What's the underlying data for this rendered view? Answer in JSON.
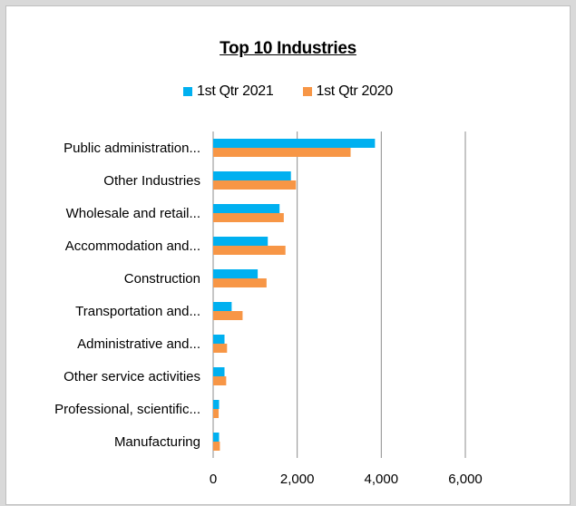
{
  "chart_data": {
    "type": "bar",
    "orientation": "horizontal",
    "title": "Top 10 Industries",
    "categories": [
      "Public administration...",
      "Other Industries",
      "Wholesale and retail...",
      "Accommodation and...",
      "Construction",
      "Transportation and...",
      "Administrative and...",
      "Other service activities",
      "Professional, scientific...",
      "Manufacturing"
    ],
    "series": [
      {
        "name": "1st Qtr 2021",
        "color": "#00b0f0",
        "values": [
          3850,
          1850,
          1580,
          1300,
          1060,
          440,
          270,
          270,
          140,
          140
        ]
      },
      {
        "name": "1st Qtr 2020",
        "color": "#f79646",
        "values": [
          3270,
          1970,
          1680,
          1720,
          1270,
          700,
          330,
          310,
          130,
          160
        ]
      }
    ],
    "xlim": [
      0,
      6000
    ],
    "xticks": [
      0,
      2000,
      4000,
      6000
    ],
    "xtick_labels": [
      "0",
      "2,000",
      "4,000",
      "6,000"
    ],
    "grid": true,
    "legend_position": "top"
  }
}
